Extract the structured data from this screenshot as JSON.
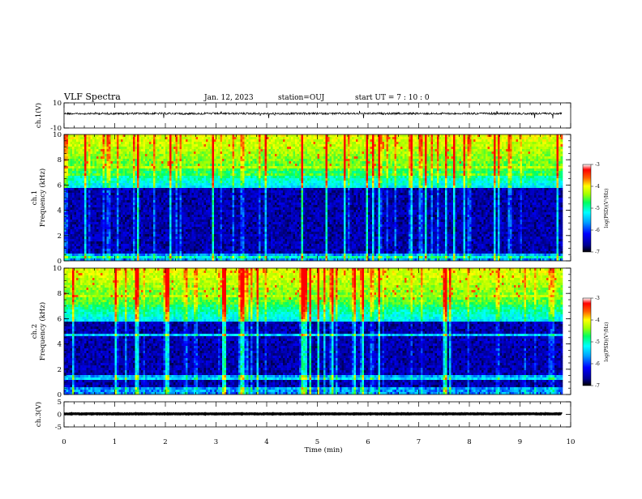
{
  "header": {
    "title": "VLF Spectra",
    "date": "Jan. 12, 2023",
    "station": "station=OUJ",
    "start_ut": "start UT =  7 : 10 : 0"
  },
  "chart_data": [
    {
      "type": "line",
      "name": "waveform-ch1",
      "ylabel": "ch.1(V)",
      "ylim": [
        -10,
        10
      ],
      "yticks": [
        10,
        -10
      ],
      "xlim": [
        0,
        10
      ],
      "offset": 1.5,
      "color": "#000000"
    },
    {
      "type": "heatmap",
      "name": "spectrogram-ch1",
      "ylabel": "ch.1\nFrequency (kHz)",
      "ylim": [
        0,
        10
      ],
      "yticks": [
        0,
        2,
        4,
        6,
        8,
        10
      ],
      "xlim": [
        0,
        10
      ],
      "data_end_min": 9.83,
      "colorbar": {
        "range": [
          -7,
          -3
        ],
        "ticks": [
          -3,
          -4,
          -5,
          -6,
          -7
        ],
        "label": "log(PSD)(V²/Hz)"
      }
    },
    {
      "type": "heatmap",
      "name": "spectrogram-ch2",
      "ylabel": "ch.2\nFrequency (kHz)",
      "ylim": [
        0,
        10
      ],
      "yticks": [
        0,
        2,
        4,
        6,
        8,
        10
      ],
      "xlim": [
        0,
        10
      ],
      "data_end_min": 9.83,
      "colorbar": {
        "range": [
          -7,
          -3
        ],
        "ticks": [
          -3,
          -4,
          -5,
          -6,
          -7
        ],
        "label": "log(PSD)(V²/Hz)"
      }
    },
    {
      "type": "line",
      "name": "waveform-ch3",
      "ylabel": "ch.3(V)",
      "ylim": [
        -5,
        5
      ],
      "yticks": [
        5,
        0,
        -5
      ],
      "xlim": [
        0,
        10
      ],
      "offset": 0.2,
      "color": "#000000"
    }
  ],
  "xaxis": {
    "label": "Time (min)",
    "ticks": [
      0,
      1,
      2,
      3,
      4,
      5,
      6,
      7,
      8,
      9,
      10
    ]
  }
}
